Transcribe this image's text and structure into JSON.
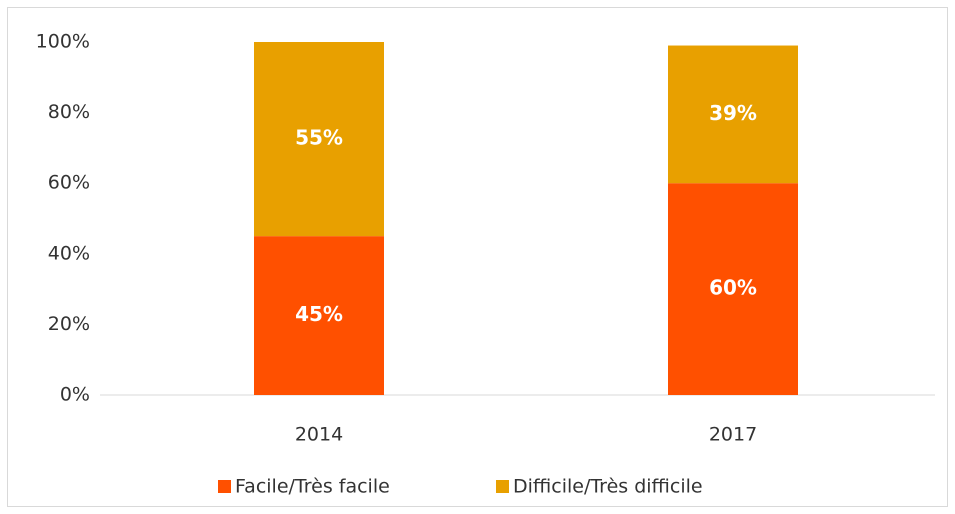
{
  "chart_data": {
    "type": "stacked_bar",
    "categories": [
      "2014",
      "2017"
    ],
    "series": [
      {
        "name": "Facile/Très facile",
        "color": "#ff5000",
        "values": [
          45,
          60
        ],
        "value_labels": [
          "45%",
          "60%"
        ]
      },
      {
        "name": "Difficile/Très difficile",
        "color": "#e8a000",
        "values": [
          55,
          39
        ],
        "value_labels": [
          "55%",
          "39%"
        ]
      }
    ],
    "ylim": [
      0,
      100
    ],
    "yticks": [
      {
        "value": 0,
        "label": "0%"
      },
      {
        "value": 20,
        "label": "20%"
      },
      {
        "value": 40,
        "label": "40%"
      },
      {
        "value": 60,
        "label": "60%"
      },
      {
        "value": 80,
        "label": "80%"
      },
      {
        "value": 100,
        "label": "100%"
      }
    ],
    "grid": false,
    "legend": "bottom"
  }
}
